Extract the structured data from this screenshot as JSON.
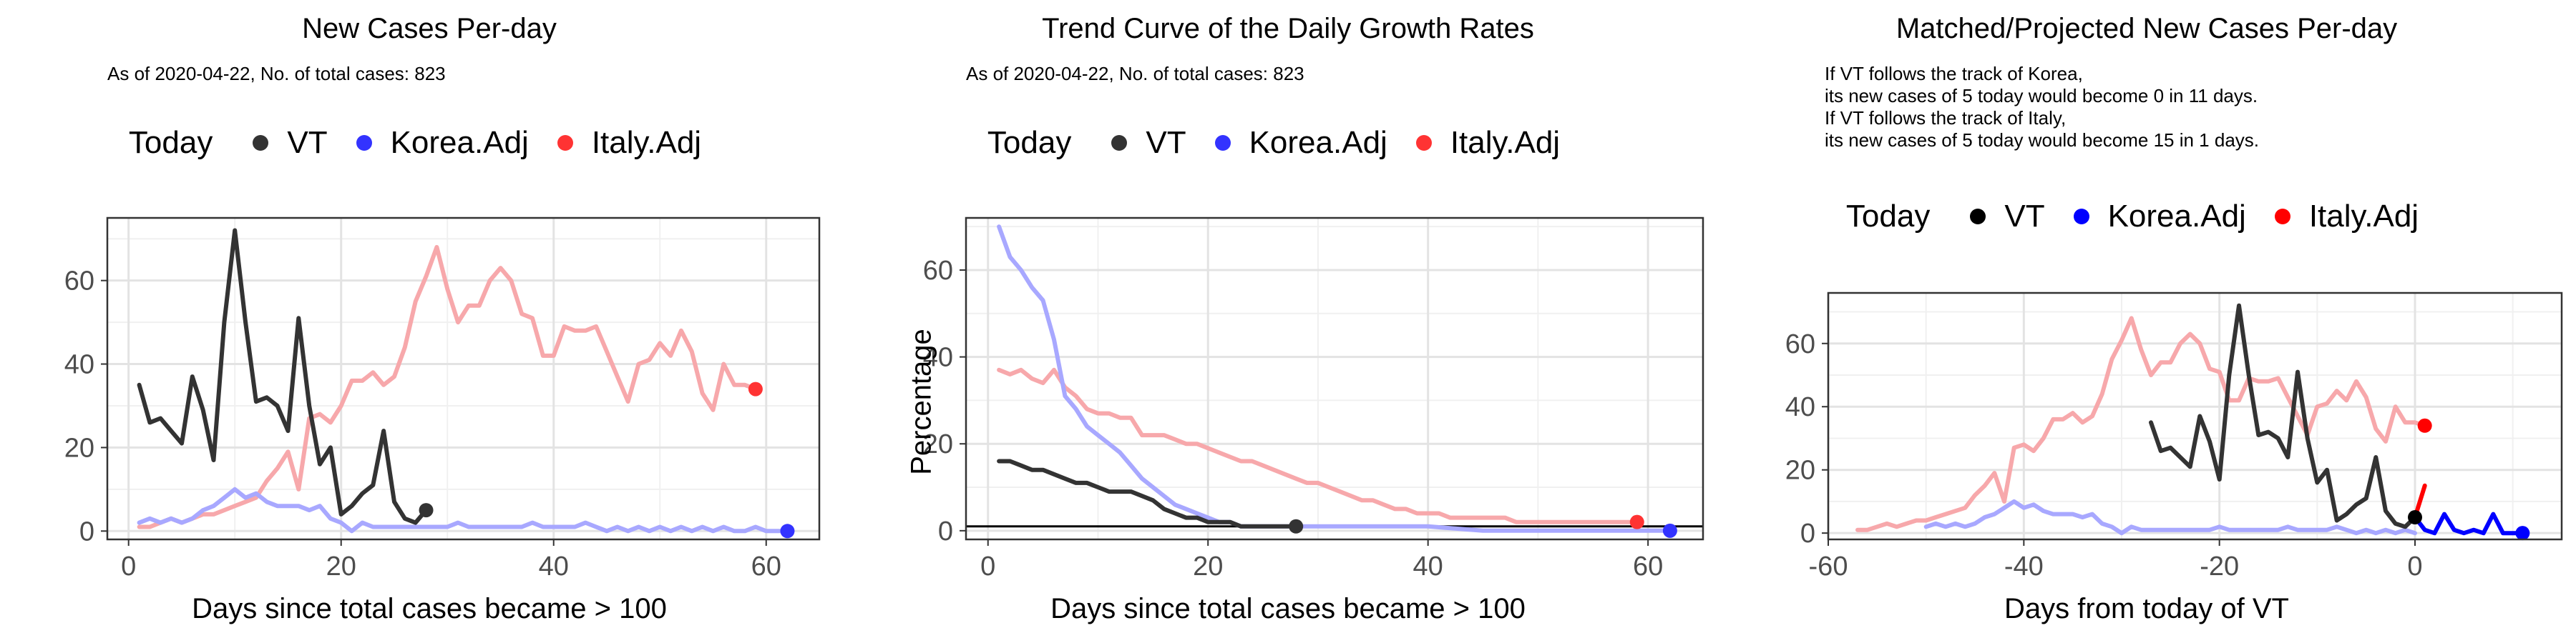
{
  "chart_data": [
    {
      "type": "line",
      "title": "New Cases Per-day",
      "subtitle": [
        "As of 2020-04-22, No. of total cases: 823"
      ],
      "xlabel": "Days since total cases became > 100",
      "ylabel": "",
      "xlim": [
        -2,
        65
      ],
      "ylim": [
        -2,
        75
      ],
      "xticks": [
        0,
        20,
        40,
        60
      ],
      "yticks": [
        0,
        20,
        40,
        60
      ],
      "legend": {
        "title": "Today",
        "placement": "top",
        "entries": [
          {
            "name": "VT",
            "color": "#333333"
          },
          {
            "name": "Korea.Adj",
            "color": "#3333ff"
          },
          {
            "name": "Italy.Adj",
            "color": "#ff3333"
          }
        ]
      },
      "series": [
        {
          "name": "Italy.Adj",
          "color": "#f7a8ab",
          "x": [
            1,
            2,
            3,
            4,
            5,
            6,
            7,
            8,
            9,
            10,
            11,
            12,
            13,
            14,
            15,
            16,
            17,
            18,
            19,
            20,
            21,
            22,
            23,
            24,
            25,
            26,
            27,
            28,
            29,
            30,
            31,
            32,
            33,
            34,
            35,
            36,
            37,
            38,
            39,
            40,
            41,
            42,
            43,
            44,
            45,
            46,
            47,
            48,
            49,
            50,
            51,
            52,
            53,
            54,
            55,
            56,
            57,
            58,
            59
          ],
          "y": [
            1,
            1,
            2,
            3,
            2,
            3,
            4,
            4,
            5,
            6,
            7,
            8,
            12,
            15,
            19,
            10,
            27,
            28,
            26,
            30,
            36,
            36,
            38,
            35,
            37,
            44,
            55,
            61,
            68,
            58,
            50,
            54,
            54,
            60,
            63,
            60,
            52,
            51,
            42,
            42,
            49,
            48,
            48,
            49,
            43,
            37,
            31,
            40,
            41,
            45,
            42,
            48,
            43,
            33,
            29,
            40,
            35,
            35,
            34
          ]
        },
        {
          "name": "Korea.Adj",
          "color": "#a8a8ff",
          "x": [
            1,
            2,
            3,
            4,
            5,
            6,
            7,
            8,
            9,
            10,
            11,
            12,
            13,
            14,
            15,
            16,
            17,
            18,
            19,
            20,
            21,
            22,
            23,
            24,
            25,
            26,
            27,
            28,
            29,
            30,
            31,
            32,
            33,
            34,
            35,
            36,
            37,
            38,
            39,
            40,
            41,
            42,
            43,
            44,
            45,
            46,
            47,
            48,
            49,
            50,
            51,
            52,
            53,
            54,
            55,
            56,
            57,
            58,
            59,
            60,
            61,
            62
          ],
          "y": [
            2,
            3,
            2,
            3,
            2,
            3,
            5,
            6,
            8,
            10,
            8,
            9,
            7,
            6,
            6,
            6,
            5,
            6,
            3,
            2,
            0,
            2,
            1,
            1,
            1,
            1,
            1,
            1,
            1,
            1,
            2,
            1,
            1,
            1,
            1,
            1,
            1,
            2,
            1,
            1,
            1,
            1,
            2,
            1,
            0,
            1,
            0,
            1,
            0,
            1,
            0,
            1,
            0,
            1,
            0,
            1,
            0,
            0,
            1,
            0,
            0,
            0
          ]
        },
        {
          "name": "VT",
          "color": "#333333",
          "x": [
            1,
            2,
            3,
            4,
            5,
            6,
            7,
            8,
            9,
            10,
            11,
            12,
            13,
            14,
            15,
            16,
            17,
            18,
            19,
            20,
            21,
            22,
            23,
            24,
            25,
            26,
            27,
            28
          ],
          "y": [
            35,
            26,
            27,
            24,
            21,
            37,
            29,
            17,
            50,
            72,
            50,
            31,
            32,
            30,
            24,
            51,
            30,
            16,
            20,
            4,
            6,
            9,
            11,
            24,
            7,
            3,
            2,
            5
          ]
        }
      ],
      "today_points": [
        {
          "name": "VT",
          "x": 28,
          "y": 5,
          "color": "#333333"
        },
        {
          "name": "Korea.Adj",
          "x": 62,
          "y": 0,
          "color": "#3333ff"
        },
        {
          "name": "Italy.Adj",
          "x": 59,
          "y": 34,
          "color": "#ff3333"
        }
      ]
    },
    {
      "type": "line",
      "title": "Trend Curve of the Daily Growth Rates",
      "subtitle": [
        "As of 2020-04-22, No. of total cases: 823"
      ],
      "xlabel": "Days since total cases became > 100",
      "ylabel": "Percentage",
      "xlim": [
        -2,
        65
      ],
      "ylim": [
        -2,
        72
      ],
      "xticks": [
        0,
        20,
        40,
        60
      ],
      "yticks": [
        0,
        20,
        40,
        60
      ],
      "hline": 1,
      "legend": {
        "title": "Today",
        "placement": "top",
        "entries": [
          {
            "name": "VT",
            "color": "#333333"
          },
          {
            "name": "Korea.Adj",
            "color": "#3333ff"
          },
          {
            "name": "Italy.Adj",
            "color": "#ff3333"
          }
        ]
      },
      "series": [
        {
          "name": "Italy.Adj",
          "color": "#f7a8ab",
          "x": [
            1,
            2,
            3,
            4,
            5,
            6,
            7,
            8,
            9,
            10,
            11,
            12,
            13,
            14,
            15,
            16,
            17,
            18,
            19,
            20,
            21,
            22,
            23,
            24,
            25,
            26,
            27,
            28,
            29,
            30,
            31,
            32,
            33,
            34,
            35,
            36,
            37,
            38,
            39,
            40,
            41,
            42,
            43,
            44,
            45,
            46,
            47,
            48,
            49,
            50,
            51,
            52,
            53,
            54,
            55,
            56,
            57,
            58,
            59
          ],
          "y": [
            37,
            36,
            37,
            35,
            34,
            37,
            33,
            31,
            28,
            27,
            27,
            26,
            26,
            22,
            22,
            22,
            21,
            20,
            20,
            19,
            18,
            17,
            16,
            16,
            15,
            14,
            13,
            12,
            11,
            11,
            10,
            9,
            8,
            7,
            7,
            6,
            5,
            5,
            4,
            4,
            4,
            3,
            3,
            3,
            3,
            3,
            3,
            2,
            2,
            2,
            2,
            2,
            2,
            2,
            2,
            2,
            2,
            2,
            2
          ]
        },
        {
          "name": "Korea.Adj",
          "color": "#a8a8ff",
          "x": [
            1,
            2,
            3,
            4,
            5,
            6,
            7,
            8,
            9,
            10,
            11,
            12,
            13,
            14,
            15,
            16,
            17,
            18,
            19,
            20,
            21,
            22,
            23,
            24,
            25,
            30,
            35,
            40,
            45,
            50,
            55,
            60,
            62
          ],
          "y": [
            70,
            63,
            60,
            56,
            53,
            44,
            31,
            28,
            24,
            22,
            20,
            18,
            15,
            12,
            10,
            8,
            6,
            5,
            4,
            3,
            2,
            2,
            1,
            1,
            1,
            1,
            1,
            1,
            0,
            0,
            0,
            0,
            0
          ]
        },
        {
          "name": "VT",
          "color": "#333333",
          "x": [
            1,
            2,
            3,
            4,
            5,
            6,
            7,
            8,
            9,
            10,
            11,
            12,
            13,
            14,
            15,
            16,
            17,
            18,
            19,
            20,
            21,
            22,
            23,
            24,
            25,
            26,
            27,
            28
          ],
          "y": [
            16,
            16,
            15,
            14,
            14,
            13,
            12,
            11,
            11,
            10,
            9,
            9,
            9,
            8,
            7,
            5,
            4,
            3,
            3,
            2,
            2,
            2,
            1,
            1,
            1,
            1,
            1,
            1
          ]
        }
      ],
      "today_points": [
        {
          "name": "VT",
          "x": 28,
          "y": 1,
          "color": "#333333"
        },
        {
          "name": "Korea.Adj",
          "x": 62,
          "y": 0,
          "color": "#3333ff"
        },
        {
          "name": "Italy.Adj",
          "x": 59,
          "y": 2,
          "color": "#ff3333"
        }
      ]
    },
    {
      "type": "line",
      "title": "Matched/Projected New Cases Per-day",
      "subtitle": [
        "If VT follows the track of Korea,",
        "its new cases of 5 today would become 0 in 11 days.",
        "If VT follows the track of Italy,",
        "its new cases of 5 today would become 15 in 1 days."
      ],
      "xlabel": "Days from today of VT",
      "ylabel": "",
      "xlim": [
        -60,
        15
      ],
      "ylim": [
        -2,
        76
      ],
      "xticks": [
        -60,
        -40,
        -20,
        0
      ],
      "yticks": [
        0,
        20,
        40,
        60
      ],
      "legend": {
        "title": "Today",
        "placement": "top",
        "entries": [
          {
            "name": "VT",
            "color": "#000000"
          },
          {
            "name": "Korea.Adj",
            "color": "#0000ff"
          },
          {
            "name": "Italy.Adj",
            "color": "#ff0000"
          }
        ]
      },
      "series": [
        {
          "name": "Italy.Adj",
          "color": "#f7a8ab",
          "x": [
            -57,
            -56,
            -55,
            -54,
            -53,
            -52,
            -51,
            -50,
            -49,
            -48,
            -47,
            -46,
            -45,
            -44,
            -43,
            -42,
            -41,
            -40,
            -39,
            -38,
            -37,
            -36,
            -35,
            -34,
            -33,
            -32,
            -31,
            -30,
            -29,
            -28,
            -27,
            -26,
            -25,
            -24,
            -23,
            -22,
            -21,
            -20,
            -19,
            -18,
            -17,
            -16,
            -15,
            -14,
            -13,
            -12,
            -11,
            -10,
            -9,
            -8,
            -7,
            -6,
            -5,
            -4,
            -3,
            -2,
            -1,
            0,
            1
          ],
          "y": [
            1,
            1,
            2,
            3,
            2,
            3,
            4,
            4,
            5,
            6,
            7,
            8,
            12,
            15,
            19,
            10,
            27,
            28,
            26,
            30,
            36,
            36,
            38,
            35,
            37,
            44,
            55,
            61,
            68,
            58,
            50,
            54,
            54,
            60,
            63,
            60,
            52,
            51,
            42,
            42,
            49,
            48,
            48,
            49,
            43,
            37,
            31,
            40,
            41,
            45,
            42,
            48,
            43,
            33,
            29,
            40,
            35,
            35,
            34
          ]
        },
        {
          "name": "Korea.Adj",
          "color": "#a8a8ff",
          "x": [
            -50,
            -49,
            -48,
            -47,
            -46,
            -45,
            -44,
            -43,
            -42,
            -41,
            -40,
            -39,
            -38,
            -37,
            -36,
            -35,
            -34,
            -33,
            -32,
            -31,
            -30,
            -29,
            -28,
            -27,
            -26,
            -25,
            -24,
            -23,
            -22,
            -21,
            -20,
            -19,
            -18,
            -17,
            -16,
            -15,
            -14,
            -13,
            -12,
            -11,
            -10,
            -9,
            -8,
            -7,
            -6,
            -5,
            -4,
            -3,
            -2,
            -1,
            0
          ],
          "y": [
            2,
            3,
            2,
            3,
            2,
            3,
            5,
            6,
            8,
            10,
            8,
            9,
            7,
            6,
            6,
            6,
            5,
            6,
            3,
            2,
            0,
            2,
            1,
            1,
            1,
            1,
            1,
            1,
            1,
            1,
            2,
            1,
            1,
            1,
            1,
            1,
            1,
            2,
            1,
            1,
            1,
            1,
            2,
            1,
            0,
            1,
            0,
            1,
            0,
            1,
            0
          ]
        },
        {
          "name": "VT",
          "color": "#333333",
          "x": [
            -27,
            -26,
            -25,
            -24,
            -23,
            -22,
            -21,
            -20,
            -19,
            -18,
            -17,
            -16,
            -15,
            -14,
            -13,
            -12,
            -11,
            -10,
            -9,
            -8,
            -7,
            -6,
            -5,
            -4,
            -3,
            -2,
            -1,
            0
          ],
          "y": [
            35,
            26,
            27,
            24,
            21,
            37,
            29,
            17,
            50,
            72,
            50,
            31,
            32,
            30,
            24,
            51,
            30,
            16,
            20,
            4,
            6,
            9,
            11,
            24,
            7,
            3,
            2,
            5
          ]
        },
        {
          "name": "Korea.Adj projected",
          "color": "#0000ff",
          "x": [
            0,
            1,
            2,
            3,
            4,
            5,
            6,
            7,
            8,
            9,
            10,
            11
          ],
          "y": [
            5,
            1,
            0,
            6,
            1,
            0,
            1,
            0,
            6,
            0,
            0,
            0
          ]
        },
        {
          "name": "Italy.Adj projected",
          "color": "#ff0000",
          "x": [
            0,
            1
          ],
          "y": [
            5,
            15
          ]
        }
      ],
      "today_points": [
        {
          "name": "VT",
          "x": 0,
          "y": 5,
          "color": "#000000"
        },
        {
          "name": "Korea.Adj",
          "x": 11,
          "y": 0,
          "color": "#0000ff"
        },
        {
          "name": "Italy.Adj",
          "x": 1,
          "y": 34,
          "color": "#ff0000"
        }
      ]
    }
  ]
}
